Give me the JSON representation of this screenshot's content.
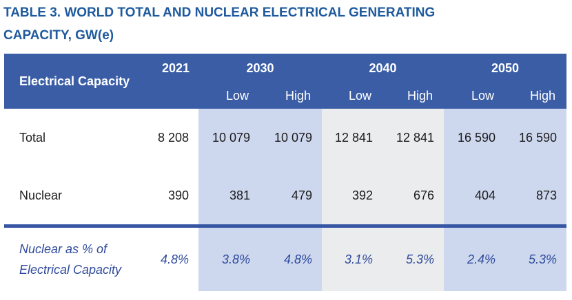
{
  "title": "TABLE 3. WORLD TOTAL AND NUCLEAR ELECTRICAL GENERATING CAPACITY, GW(e)",
  "colors": {
    "title_text": "#1E5A9D",
    "header_bg": "#3A5DA6",
    "band_blue": "#CDD7ED",
    "band_gray": "#EBECEE",
    "divider": "#3656A4",
    "percent_text": "#2E4A9C"
  },
  "table": {
    "row_header_label": "Electrical Capacity",
    "col_2021": "2021",
    "years": [
      "2030",
      "2040",
      "2050"
    ],
    "low_label": "Low",
    "high_label": "High",
    "rows": [
      {
        "label": "Total",
        "cells": [
          "8 208",
          "10 079",
          "10 079",
          "12 841",
          "12 841",
          "16 590",
          "16 590"
        ]
      },
      {
        "label": "Nuclear",
        "cells": [
          "390",
          "381",
          "479",
          "392",
          "676",
          "404",
          "873"
        ]
      },
      {
        "label": "Nuclear as % of Electrical Capacity",
        "cells": [
          "4.8%",
          "3.8%",
          "4.8%",
          "3.1%",
          "5.3%",
          "2.4%",
          "5.3%"
        ]
      }
    ]
  }
}
